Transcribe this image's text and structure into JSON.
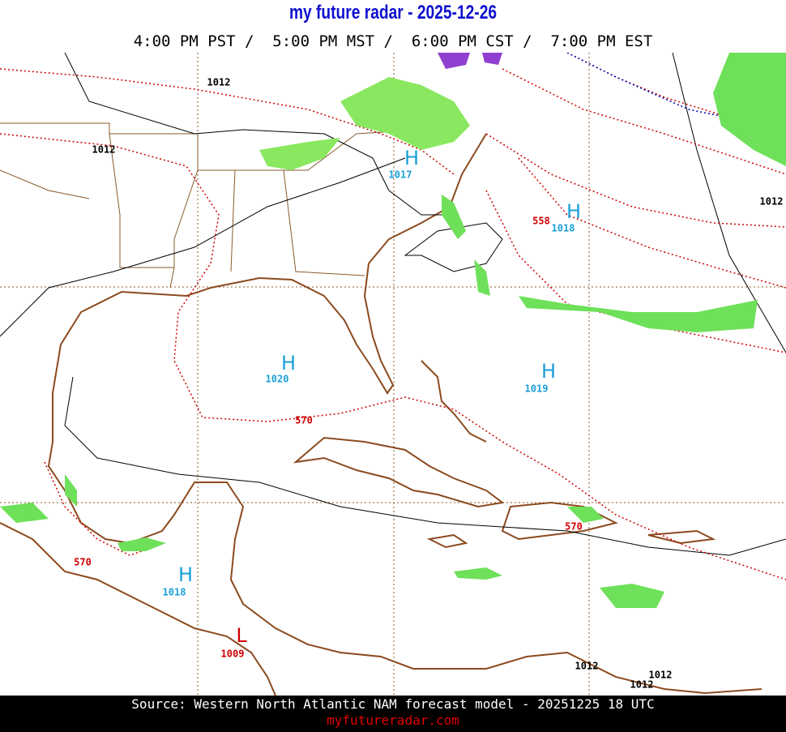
{
  "header": {
    "title": "my future radar - 2025-12-26",
    "times": "4:00 PM PST /  5:00 PM MST /  6:00 PM CST /  7:00 PM EST"
  },
  "map": {
    "labels": [
      {
        "text": "1012",
        "color": "#000000"
      },
      {
        "text": "1012",
        "color": "#000000"
      },
      {
        "text": "H",
        "color": "#1a9fd8"
      },
      {
        "text": "1017",
        "color": "#1a9fd8"
      },
      {
        "text": "1012",
        "color": "#000000"
      },
      {
        "text": "558",
        "color": "#d00000"
      },
      {
        "text": "H",
        "color": "#1a9fd8"
      },
      {
        "text": "1018",
        "color": "#1a9fd8"
      },
      {
        "text": "H",
        "color": "#1a9fd8"
      },
      {
        "text": "1020",
        "color": "#1a9fd8"
      },
      {
        "text": "570",
        "color": "#d00000"
      },
      {
        "text": "H",
        "color": "#1a9fd8"
      },
      {
        "text": "1019",
        "color": "#1a9fd8"
      },
      {
        "text": "570",
        "color": "#d00000"
      },
      {
        "text": "570",
        "color": "#d00000"
      },
      {
        "text": "H",
        "color": "#1a9fd8"
      },
      {
        "text": "1018",
        "color": "#1a9fd8"
      },
      {
        "text": "L",
        "color": "#d00000"
      },
      {
        "text": "1009",
        "color": "#d00000"
      },
      {
        "text": "1012",
        "color": "#000000"
      },
      {
        "text": "1012",
        "color": "#000000"
      },
      {
        "text": "1012",
        "color": "#000000"
      }
    ]
  },
  "footer": {
    "source": "Source: Western North Atlantic NAM forecast model - 20251225 18 UTC",
    "url": "myfutureradar.com"
  }
}
